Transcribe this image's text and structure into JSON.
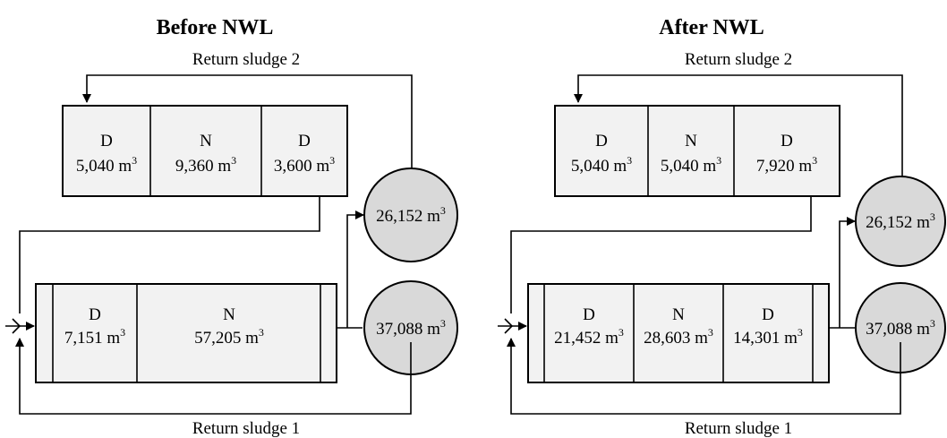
{
  "colors": {
    "tank_fill": "#f2f2f2",
    "clarifier_fill": "#d9d9d9",
    "line": "#000000"
  },
  "before": {
    "title": "Before NWL",
    "return_sludge_2": "Return sludge 2",
    "return_sludge_1": "Return sludge 1",
    "upper_tank": [
      {
        "zone": "D",
        "volume": "5,040 m",
        "unit_sup": "3"
      },
      {
        "zone": "N",
        "volume": "9,360 m",
        "unit_sup": "3"
      },
      {
        "zone": "D",
        "volume": "3,600 m",
        "unit_sup": "3"
      }
    ],
    "lower_tank": [
      {
        "zone": "D",
        "volume": "7,151 m",
        "unit_sup": "3"
      },
      {
        "zone": "N",
        "volume": "57,205 m",
        "unit_sup": "3"
      }
    ],
    "clarifier_upper": {
      "volume": "26,152 m",
      "unit_sup": "3"
    },
    "clarifier_lower": {
      "volume": "37,088 m",
      "unit_sup": "3"
    }
  },
  "after": {
    "title": "After NWL",
    "return_sludge_2": "Return sludge 2",
    "return_sludge_1": "Return sludge 1",
    "upper_tank": [
      {
        "zone": "D",
        "volume": "5,040 m",
        "unit_sup": "3"
      },
      {
        "zone": "N",
        "volume": "5,040 m",
        "unit_sup": "3"
      },
      {
        "zone": "D",
        "volume": "7,920 m",
        "unit_sup": "3"
      }
    ],
    "lower_tank": [
      {
        "zone": "D",
        "volume": "21,452 m",
        "unit_sup": "3"
      },
      {
        "zone": "N",
        "volume": "28,603 m",
        "unit_sup": "3"
      },
      {
        "zone": "D",
        "volume": "14,301 m",
        "unit_sup": "3"
      }
    ],
    "clarifier_upper": {
      "volume": "26,152 m",
      "unit_sup": "3"
    },
    "clarifier_lower": {
      "volume": "37,088 m",
      "unit_sup": "3"
    }
  }
}
